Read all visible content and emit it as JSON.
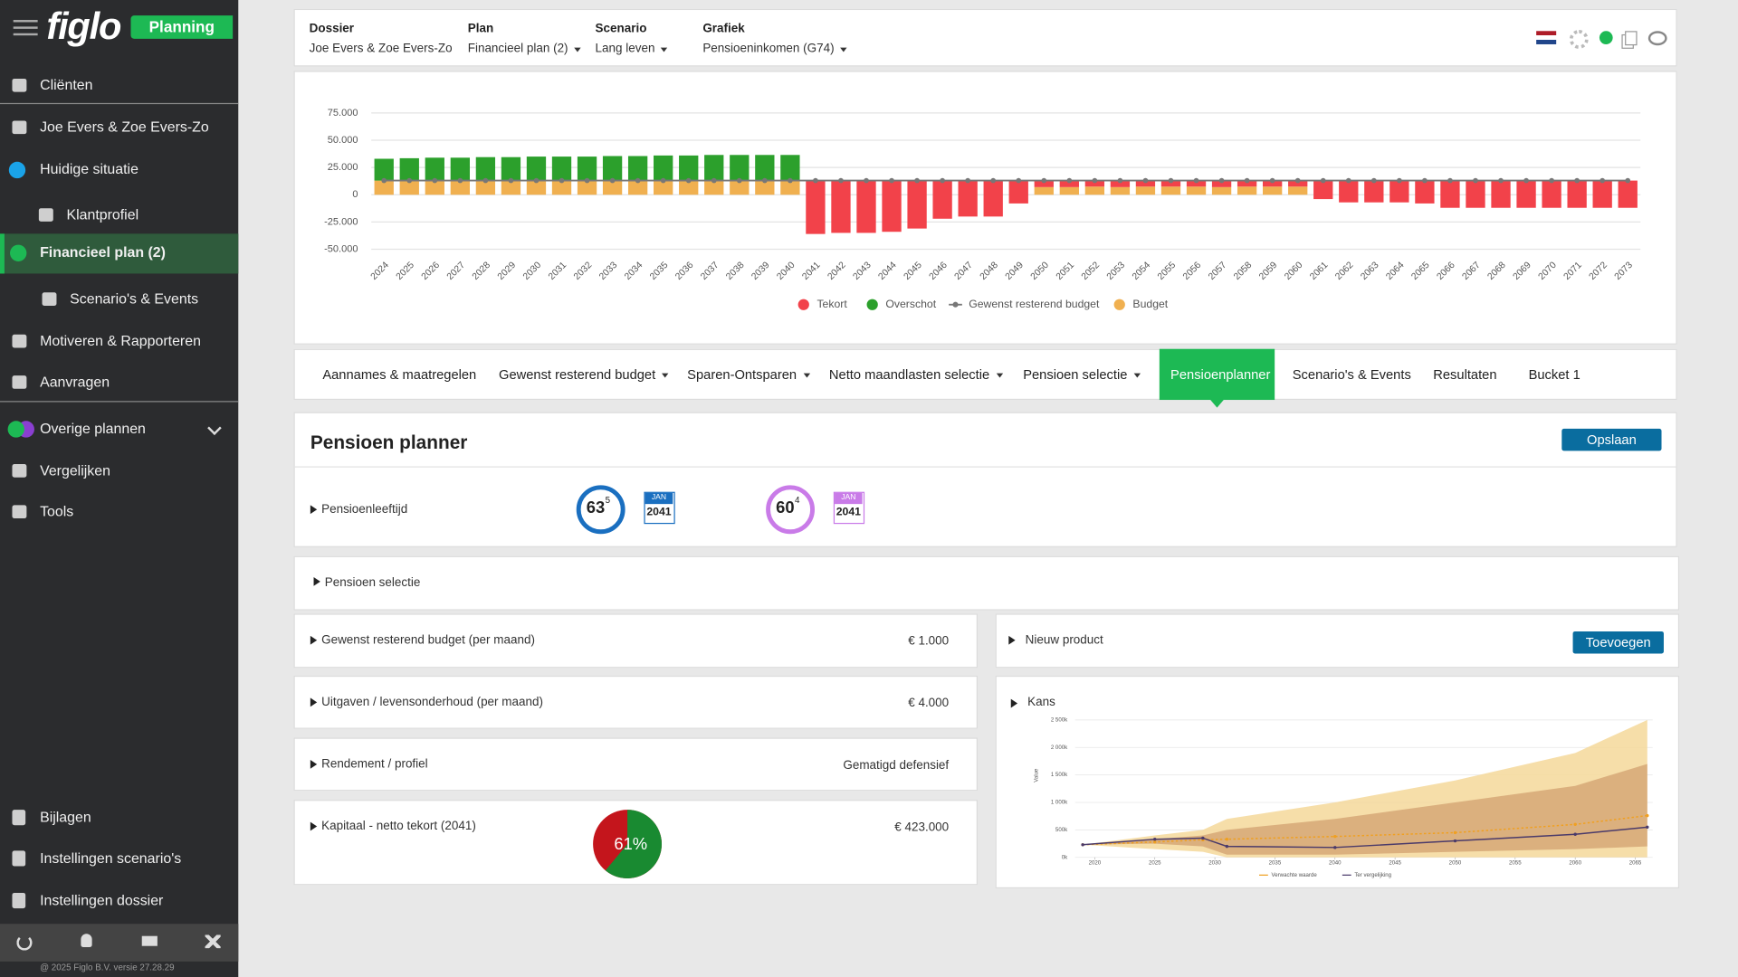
{
  "sidebar": {
    "logo": "figlo",
    "badge": "Planning",
    "menu": [
      "Cliënten",
      "Joe Evers & Zoe Evers-Zo",
      "Huidige situatie",
      "Klantprofiel",
      "Financieel plan (2)",
      "Scenario's & Events",
      "Motiveren & Rapporteren",
      "Aanvragen",
      "Overige plannen",
      "Vergelijken",
      "Tools"
    ],
    "bottom_menu": [
      "Bijlagen",
      "Instellingen scenario's",
      "Instellingen dossier"
    ],
    "copyright": "@ 2025 Figlo B.V. versie 27.28.29"
  },
  "header": {
    "fields": [
      {
        "label": "Dossier",
        "value": "Joe Evers & Zoe Evers-Zo",
        "dropdown": false
      },
      {
        "label": "Plan",
        "value": "Financieel plan (2)",
        "dropdown": true
      },
      {
        "label": "Scenario",
        "value": "Lang leven",
        "dropdown": true
      },
      {
        "label": "Grafiek",
        "value": "Pensioeninkomen (G74)",
        "dropdown": true
      }
    ]
  },
  "chart_data": [
    {
      "type": "bar",
      "categories": [
        "2024",
        "2025",
        "2026",
        "2027",
        "2028",
        "2029",
        "2030",
        "2031",
        "2032",
        "2033",
        "2034",
        "2035",
        "2036",
        "2037",
        "2038",
        "2039",
        "2040",
        "2041",
        "2042",
        "2043",
        "2044",
        "2045",
        "2046",
        "2047",
        "2048",
        "2049",
        "2050",
        "2051",
        "2052",
        "2053",
        "2054",
        "2055",
        "2056",
        "2057",
        "2058",
        "2059",
        "2060",
        "2061",
        "2062",
        "2063",
        "2064",
        "2065",
        "2066",
        "2067",
        "2068",
        "2069",
        "2070",
        "2071",
        "2072",
        "2073"
      ],
      "series": [
        {
          "name": "Tekort",
          "color": "#f2424a",
          "values": [
            null,
            null,
            null,
            null,
            null,
            null,
            null,
            null,
            null,
            null,
            null,
            null,
            null,
            null,
            null,
            null,
            null,
            -49000,
            -48000,
            -48000,
            -47000,
            -44000,
            -35000,
            -33000,
            -33000,
            -21000,
            -6000,
            -6000,
            -5500,
            -6000,
            -5500,
            -5500,
            -5500,
            -6000,
            -5500,
            -5500,
            -5500,
            -17000,
            -20000,
            -20000,
            -20000,
            -21000,
            -25000,
            -25000,
            -25000,
            -25000,
            -25000,
            -25000,
            -25000,
            -25000
          ]
        },
        {
          "name": "Overschot",
          "color": "#2ca02c",
          "values": [
            20000,
            20500,
            21000,
            21000,
            21500,
            21500,
            22000,
            22000,
            22000,
            22500,
            22500,
            23000,
            23000,
            23500,
            23500,
            23500,
            23500,
            null,
            null,
            null,
            null,
            null,
            null,
            null,
            null,
            null,
            null,
            null,
            null,
            null,
            null,
            null,
            null,
            null,
            null,
            null,
            null,
            null,
            null,
            null,
            null,
            null,
            null,
            null,
            null,
            null,
            null,
            null,
            null,
            null
          ]
        },
        {
          "name": "Gewenst resterend budget",
          "color": "#777777",
          "values": [
            13000,
            13000,
            13000,
            13000,
            13000,
            13000,
            13000,
            13000,
            13000,
            13000,
            13000,
            13000,
            13000,
            13000,
            13000,
            13000,
            13000,
            13000,
            13000,
            13000,
            13000,
            13000,
            13000,
            13000,
            13000,
            13000,
            13000,
            13000,
            13000,
            13000,
            13000,
            13000,
            13000,
            13000,
            13000,
            13000,
            13000,
            13000,
            13000,
            13000,
            13000,
            13000,
            13000,
            13000,
            13000,
            13000,
            13000,
            13000,
            13000,
            13000
          ]
        },
        {
          "name": "Budget",
          "color": "#f0b050",
          "values": [
            13000,
            13000,
            13000,
            13000,
            13000,
            13000,
            13000,
            13000,
            13000,
            13000,
            13000,
            13000,
            13000,
            13000,
            13000,
            13000,
            13000,
            null,
            null,
            null,
            null,
            null,
            null,
            null,
            null,
            null,
            7000,
            7000,
            7500,
            7000,
            7500,
            7500,
            7500,
            7000,
            7500,
            7500,
            7500,
            null,
            null,
            null,
            null,
            null,
            null,
            null,
            null,
            null,
            null,
            null,
            null,
            null
          ]
        }
      ],
      "ylim": [
        -50000,
        75000
      ],
      "yticks": [
        {
          "value": 75000,
          "label": "75.000"
        },
        {
          "value": 50000,
          "label": "50.000"
        },
        {
          "value": 25000,
          "label": "25.000"
        },
        0,
        {
          "value": -25000,
          "label": "-25.000"
        },
        {
          "value": -50000,
          "label": "-50.000"
        }
      ],
      "grid": true
    },
    {
      "type": "area",
      "title": "Kans",
      "ylabel": "Value",
      "x": [
        2019,
        2025,
        2029,
        2031,
        2040,
        2050,
        2060,
        2066
      ],
      "bands": [
        {
          "color": "#f5d89a",
          "low": [
            230000,
            150000,
            100000,
            0,
            0,
            0,
            0,
            0
          ],
          "high": [
            230000,
            400000,
            500000,
            700000,
            1000000,
            1400000,
            1900000,
            2500000
          ]
        },
        {
          "color": "#d6a877",
          "low": [
            230000,
            250000,
            200000,
            50000,
            50000,
            100000,
            150000,
            200000
          ],
          "high": [
            230000,
            330000,
            400000,
            500000,
            700000,
            1000000,
            1300000,
            1700000
          ]
        }
      ],
      "series": [
        {
          "name": "Verwachte waarde",
          "color": "#f0a020",
          "values": [
            230000,
            280000,
            320000,
            330000,
            380000,
            450000,
            600000,
            760000
          ]
        },
        {
          "name": "Ter vergelijking",
          "color": "#4a3a6a",
          "values": [
            230000,
            330000,
            350000,
            200000,
            180000,
            300000,
            420000,
            550000
          ]
        }
      ],
      "xlim": [
        2018,
        2067
      ],
      "xticks": [
        2020,
        2025,
        2030,
        2035,
        2040,
        2045,
        2050,
        2055,
        2060,
        2065
      ],
      "ylim": [
        0,
        2600000
      ],
      "yticks": [
        {
          "value": 0,
          "label": "0k"
        },
        {
          "value": 500000,
          "label": "500k"
        },
        {
          "value": 1000000,
          "label": "1 000k"
        },
        {
          "value": 1500000,
          "label": "1 500k"
        },
        {
          "value": 2000000,
          "label": "2 000k"
        },
        {
          "value": 2500000,
          "label": "2 500k"
        }
      ],
      "grid": true
    },
    {
      "type": "pie",
      "values": [
        61
      ],
      "value_labels": [
        "61%"
      ],
      "colors": [
        "#198a31",
        "#c4151c"
      ]
    }
  ],
  "tabs": [
    {
      "label": "Aannames & maatregelen",
      "dropdown": false
    },
    {
      "label": "Gewenst resterend budget",
      "dropdown": true
    },
    {
      "label": "Sparen-Ontsparen",
      "dropdown": true
    },
    {
      "label": "Netto maandlasten selectie",
      "dropdown": true
    },
    {
      "label": "Pensioen selectie",
      "dropdown": true
    },
    {
      "label": "Pensioenplanner",
      "dropdown": false
    },
    {
      "label": "Scenario's & Events",
      "dropdown": false
    },
    {
      "label": "Resultaten",
      "dropdown": false
    },
    {
      "label": "Bucket 1",
      "dropdown": false
    }
  ],
  "active_tab": 5,
  "planner": {
    "title": "Pensioen planner",
    "save_button": "Opslaan",
    "retirement": {
      "label": "Pensioenleeftijd",
      "persons": [
        {
          "age": 63,
          "months": 5,
          "month": "JAN",
          "year": 2041,
          "color": "#1a6fc0"
        },
        {
          "age": 60,
          "months": 4,
          "month": "JAN",
          "year": 2041,
          "color": "#c97be8"
        }
      ]
    },
    "selection": "Pensioen selectie",
    "rows": [
      {
        "label": "Gewenst resterend budget (per maand)",
        "value": "€ 1.000"
      },
      {
        "label": "Uitgaven / levensonderhoud (per maand)",
        "value": "€ 4.000"
      },
      {
        "label": "Rendement / profiel",
        "value": "Gematigd defensief"
      },
      {
        "label": "Kapitaal - netto tekort (2041)",
        "value": "€ 423.000"
      }
    ],
    "new_product": {
      "label": "Nieuw product",
      "button": "Toevoegen"
    }
  }
}
